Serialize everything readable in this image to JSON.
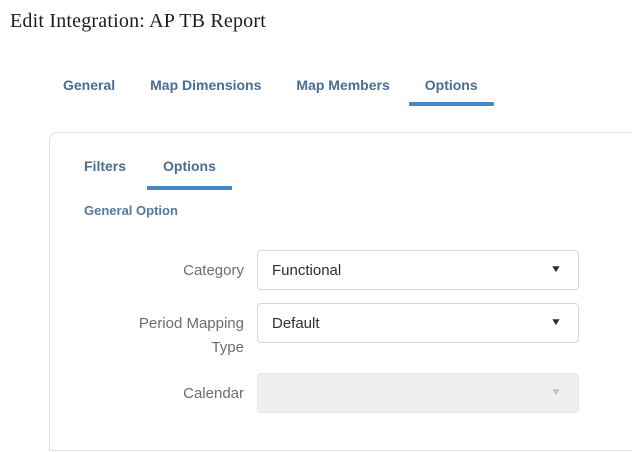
{
  "window": {
    "title": "Edit Integration: AP TB Report"
  },
  "main_tabs": [
    {
      "label": "General",
      "active": false
    },
    {
      "label": "Map Dimensions",
      "active": false
    },
    {
      "label": "Map Members",
      "active": false
    },
    {
      "label": "Options",
      "active": true
    }
  ],
  "panel": {
    "sub_tabs": [
      {
        "label": "Filters",
        "active": false
      },
      {
        "label": "Options",
        "active": true
      }
    ],
    "section_heading": "General Option",
    "fields": [
      {
        "label": "Category",
        "value": "Functional",
        "disabled": false
      },
      {
        "label": "Period Mapping Type",
        "value": "Default",
        "disabled": false
      },
      {
        "label": "Calendar",
        "value": "",
        "disabled": true
      }
    ]
  },
  "icons": {
    "dropdown_arrow": "▼"
  },
  "colors": {
    "tab_text": "#4a6d90",
    "active_tab_underline": "#4788c8",
    "section_heading_text": "#56789c",
    "label_text": "#6d6d6d",
    "dropdown_border": "#d8d8d8",
    "dropdown_text": "#2e2e2e",
    "disabled_fill": "#efefef",
    "panel_border": "#e0e0e0"
  }
}
